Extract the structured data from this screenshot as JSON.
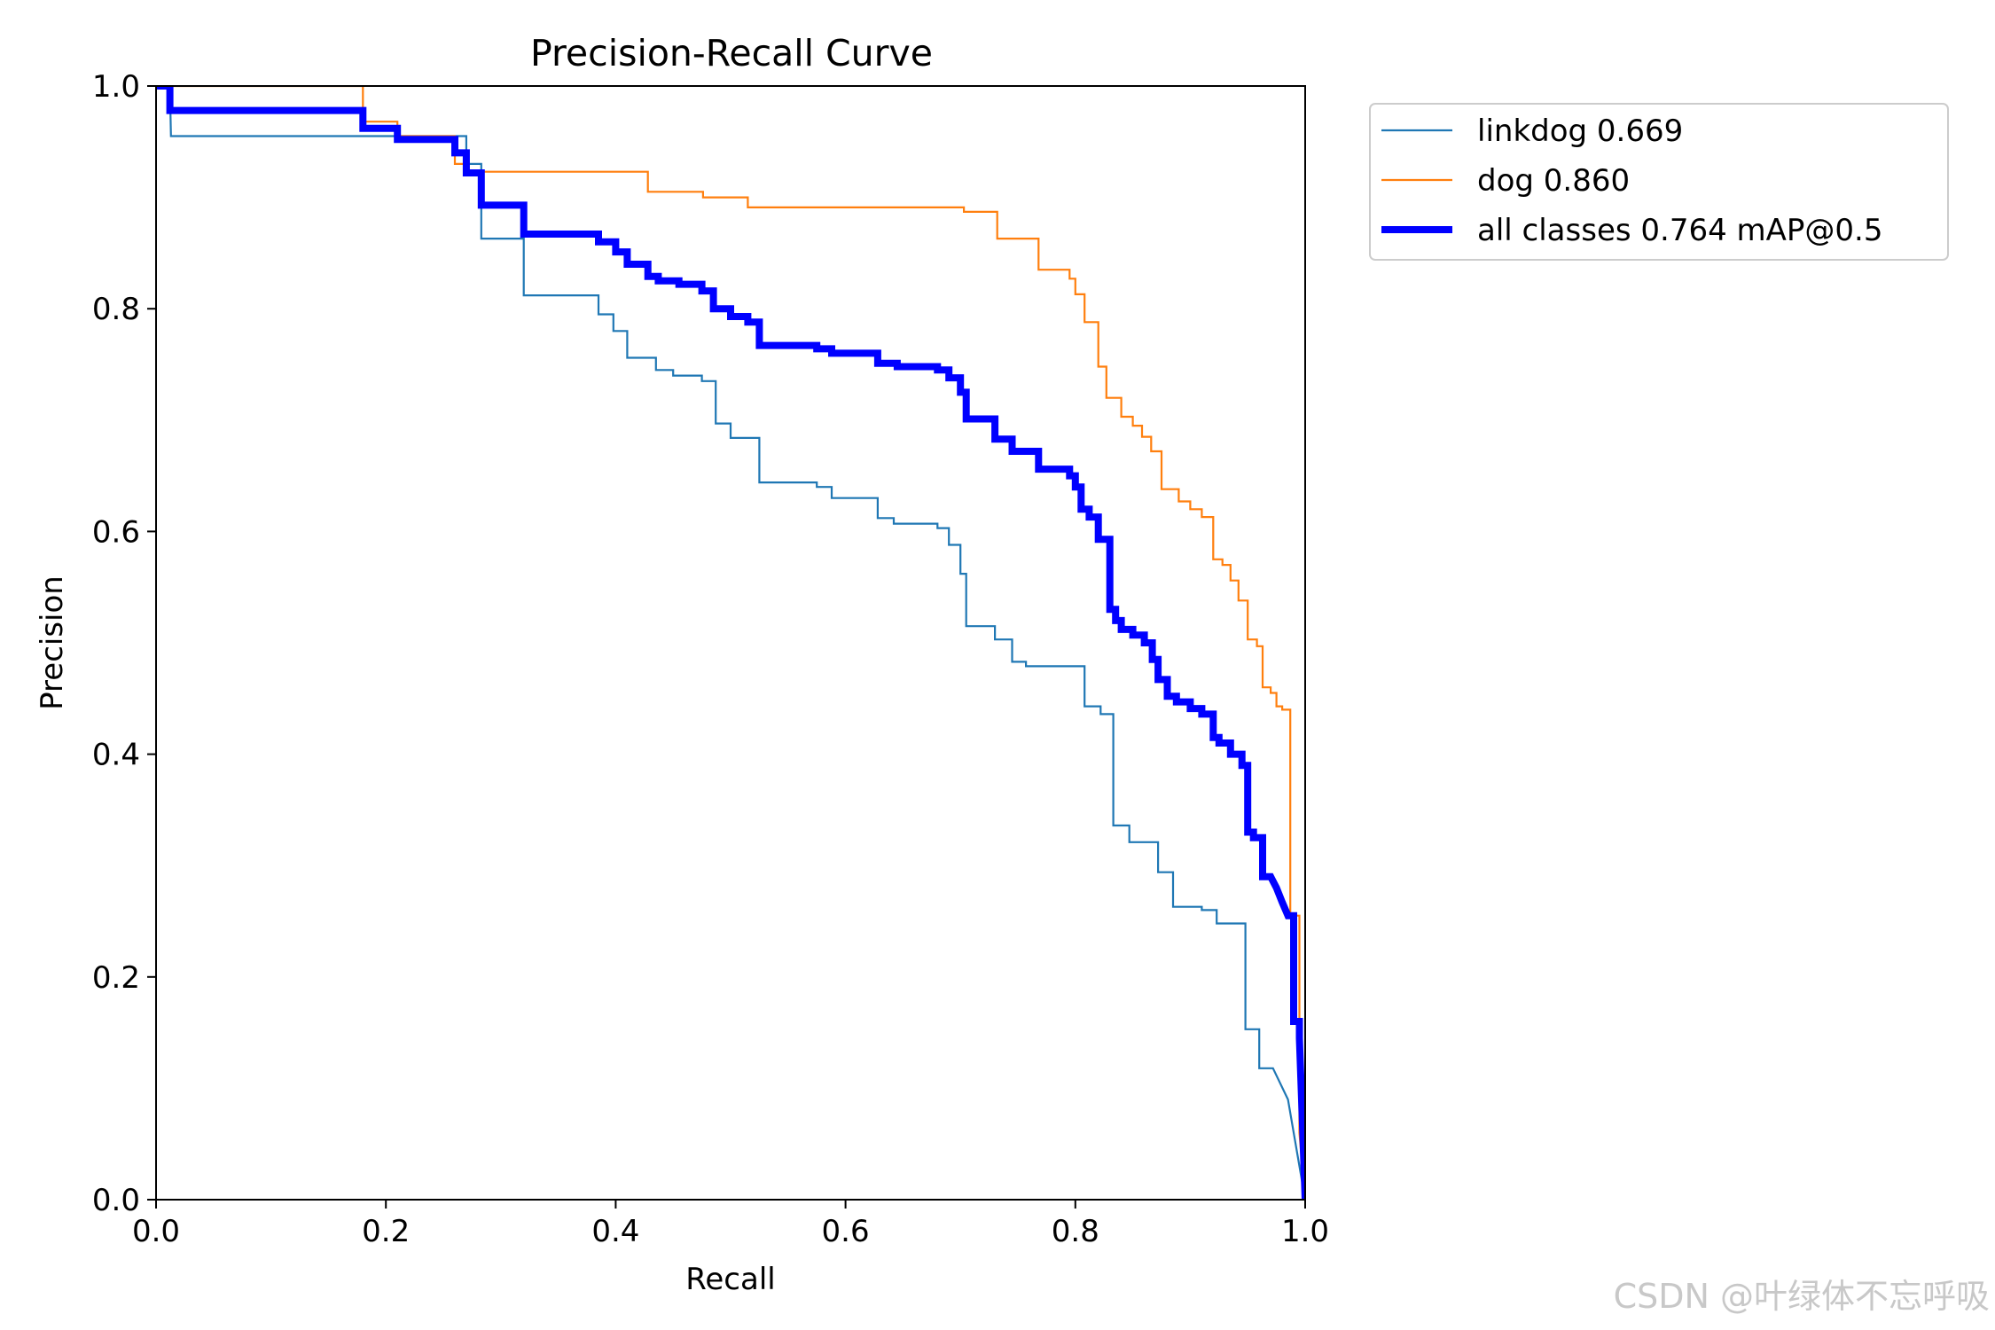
{
  "chart_data": {
    "type": "line",
    "title": "Precision-Recall Curve",
    "xlabel": "Recall",
    "ylabel": "Precision",
    "xlim": [
      0,
      1
    ],
    "ylim": [
      0,
      1
    ],
    "xticks": [
      "0.0",
      "0.2",
      "0.4",
      "0.6",
      "0.8",
      "1.0"
    ],
    "yticks": [
      "0.0",
      "0.2",
      "0.4",
      "0.6",
      "0.8",
      "1.0"
    ],
    "grid": false,
    "legend_position": "outside upper right",
    "series": [
      {
        "name": "linkdog 0.669",
        "color": "#1f77b4",
        "linewidth": "thin",
        "points": [
          [
            0,
            1.0
          ],
          [
            0.012,
            1.0
          ],
          [
            0.013,
            0.955
          ],
          [
            0.2,
            0.955
          ],
          [
            0.27,
            0.955
          ],
          [
            0.27,
            0.93
          ],
          [
            0.283,
            0.93
          ],
          [
            0.283,
            0.863
          ],
          [
            0.32,
            0.863
          ],
          [
            0.32,
            0.812
          ],
          [
            0.385,
            0.812
          ],
          [
            0.385,
            0.795
          ],
          [
            0.398,
            0.795
          ],
          [
            0.398,
            0.78
          ],
          [
            0.41,
            0.78
          ],
          [
            0.41,
            0.756
          ],
          [
            0.435,
            0.756
          ],
          [
            0.435,
            0.745
          ],
          [
            0.45,
            0.745
          ],
          [
            0.45,
            0.74
          ],
          [
            0.475,
            0.74
          ],
          [
            0.475,
            0.735
          ],
          [
            0.487,
            0.735
          ],
          [
            0.487,
            0.697
          ],
          [
            0.5,
            0.697
          ],
          [
            0.5,
            0.684
          ],
          [
            0.525,
            0.684
          ],
          [
            0.525,
            0.644
          ],
          [
            0.575,
            0.644
          ],
          [
            0.575,
            0.64
          ],
          [
            0.588,
            0.64
          ],
          [
            0.588,
            0.63
          ],
          [
            0.628,
            0.63
          ],
          [
            0.628,
            0.612
          ],
          [
            0.642,
            0.612
          ],
          [
            0.642,
            0.607
          ],
          [
            0.68,
            0.607
          ],
          [
            0.68,
            0.603
          ],
          [
            0.69,
            0.603
          ],
          [
            0.69,
            0.588
          ],
          [
            0.7,
            0.588
          ],
          [
            0.7,
            0.562
          ],
          [
            0.705,
            0.562
          ],
          [
            0.705,
            0.515
          ],
          [
            0.73,
            0.515
          ],
          [
            0.73,
            0.503
          ],
          [
            0.745,
            0.503
          ],
          [
            0.745,
            0.483
          ],
          [
            0.757,
            0.483
          ],
          [
            0.757,
            0.479
          ],
          [
            0.808,
            0.479
          ],
          [
            0.808,
            0.443
          ],
          [
            0.822,
            0.443
          ],
          [
            0.822,
            0.436
          ],
          [
            0.833,
            0.436
          ],
          [
            0.833,
            0.336
          ],
          [
            0.847,
            0.336
          ],
          [
            0.847,
            0.321
          ],
          [
            0.872,
            0.321
          ],
          [
            0.872,
            0.294
          ],
          [
            0.885,
            0.294
          ],
          [
            0.885,
            0.263
          ],
          [
            0.91,
            0.263
          ],
          [
            0.91,
            0.26
          ],
          [
            0.923,
            0.26
          ],
          [
            0.923,
            0.248
          ],
          [
            0.948,
            0.248
          ],
          [
            0.948,
            0.153
          ],
          [
            0.96,
            0.153
          ],
          [
            0.96,
            0.118
          ],
          [
            0.972,
            0.118
          ],
          [
            0.985,
            0.09
          ],
          [
            1.0,
            0.0
          ]
        ]
      },
      {
        "name": "dog 0.860",
        "color": "#ff7f0e",
        "linewidth": "thin",
        "points": [
          [
            0,
            1.0
          ],
          [
            0.18,
            1.0
          ],
          [
            0.18,
            0.968
          ],
          [
            0.21,
            0.968
          ],
          [
            0.21,
            0.955
          ],
          [
            0.26,
            0.955
          ],
          [
            0.26,
            0.93
          ],
          [
            0.272,
            0.93
          ],
          [
            0.272,
            0.923
          ],
          [
            0.428,
            0.923
          ],
          [
            0.428,
            0.905
          ],
          [
            0.476,
            0.905
          ],
          [
            0.476,
            0.9
          ],
          [
            0.515,
            0.9
          ],
          [
            0.515,
            0.891
          ],
          [
            0.703,
            0.891
          ],
          [
            0.703,
            0.887
          ],
          [
            0.732,
            0.887
          ],
          [
            0.732,
            0.863
          ],
          [
            0.768,
            0.863
          ],
          [
            0.768,
            0.835
          ],
          [
            0.795,
            0.835
          ],
          [
            0.795,
            0.827
          ],
          [
            0.8,
            0.827
          ],
          [
            0.8,
            0.813
          ],
          [
            0.808,
            0.813
          ],
          [
            0.808,
            0.788
          ],
          [
            0.82,
            0.788
          ],
          [
            0.82,
            0.748
          ],
          [
            0.827,
            0.748
          ],
          [
            0.827,
            0.72
          ],
          [
            0.84,
            0.72
          ],
          [
            0.84,
            0.703
          ],
          [
            0.85,
            0.703
          ],
          [
            0.85,
            0.695
          ],
          [
            0.858,
            0.695
          ],
          [
            0.858,
            0.685
          ],
          [
            0.866,
            0.685
          ],
          [
            0.866,
            0.672
          ],
          [
            0.875,
            0.672
          ],
          [
            0.875,
            0.638
          ],
          [
            0.89,
            0.638
          ],
          [
            0.89,
            0.627
          ],
          [
            0.9,
            0.627
          ],
          [
            0.9,
            0.62
          ],
          [
            0.91,
            0.62
          ],
          [
            0.91,
            0.613
          ],
          [
            0.92,
            0.613
          ],
          [
            0.92,
            0.575
          ],
          [
            0.928,
            0.575
          ],
          [
            0.928,
            0.57
          ],
          [
            0.935,
            0.57
          ],
          [
            0.935,
            0.556
          ],
          [
            0.942,
            0.556
          ],
          [
            0.942,
            0.538
          ],
          [
            0.95,
            0.538
          ],
          [
            0.95,
            0.503
          ],
          [
            0.958,
            0.503
          ],
          [
            0.958,
            0.497
          ],
          [
            0.963,
            0.497
          ],
          [
            0.963,
            0.46
          ],
          [
            0.97,
            0.46
          ],
          [
            0.97,
            0.455
          ],
          [
            0.975,
            0.455
          ],
          [
            0.975,
            0.443
          ],
          [
            0.98,
            0.443
          ],
          [
            0.98,
            0.44
          ],
          [
            0.987,
            0.44
          ],
          [
            0.987,
            0.255
          ],
          [
            0.995,
            0.255
          ],
          [
            0.995,
            0.06
          ],
          [
            1.0,
            0.0
          ]
        ]
      },
      {
        "name": "all classes 0.764 mAP@0.5",
        "color": "#0000ff",
        "linewidth": "thick",
        "points": [
          [
            0,
            1.0
          ],
          [
            0.012,
            1.0
          ],
          [
            0.012,
            0.978
          ],
          [
            0.18,
            0.978
          ],
          [
            0.18,
            0.962
          ],
          [
            0.21,
            0.962
          ],
          [
            0.21,
            0.952
          ],
          [
            0.26,
            0.952
          ],
          [
            0.26,
            0.94
          ],
          [
            0.27,
            0.94
          ],
          [
            0.27,
            0.922
          ],
          [
            0.283,
            0.922
          ],
          [
            0.283,
            0.893
          ],
          [
            0.32,
            0.893
          ],
          [
            0.32,
            0.867
          ],
          [
            0.385,
            0.867
          ],
          [
            0.385,
            0.86
          ],
          [
            0.4,
            0.86
          ],
          [
            0.4,
            0.851
          ],
          [
            0.41,
            0.851
          ],
          [
            0.41,
            0.84
          ],
          [
            0.428,
            0.84
          ],
          [
            0.428,
            0.829
          ],
          [
            0.437,
            0.829
          ],
          [
            0.437,
            0.825
          ],
          [
            0.455,
            0.825
          ],
          [
            0.455,
            0.822
          ],
          [
            0.475,
            0.822
          ],
          [
            0.475,
            0.816
          ],
          [
            0.485,
            0.816
          ],
          [
            0.485,
            0.8
          ],
          [
            0.5,
            0.8
          ],
          [
            0.5,
            0.793
          ],
          [
            0.515,
            0.793
          ],
          [
            0.515,
            0.788
          ],
          [
            0.525,
            0.788
          ],
          [
            0.525,
            0.767
          ],
          [
            0.575,
            0.767
          ],
          [
            0.575,
            0.764
          ],
          [
            0.588,
            0.764
          ],
          [
            0.588,
            0.76
          ],
          [
            0.628,
            0.76
          ],
          [
            0.628,
            0.751
          ],
          [
            0.645,
            0.751
          ],
          [
            0.645,
            0.748
          ],
          [
            0.68,
            0.748
          ],
          [
            0.68,
            0.745
          ],
          [
            0.69,
            0.745
          ],
          [
            0.69,
            0.738
          ],
          [
            0.7,
            0.738
          ],
          [
            0.7,
            0.725
          ],
          [
            0.705,
            0.725
          ],
          [
            0.705,
            0.701
          ],
          [
            0.73,
            0.701
          ],
          [
            0.73,
            0.683
          ],
          [
            0.745,
            0.683
          ],
          [
            0.745,
            0.672
          ],
          [
            0.768,
            0.672
          ],
          [
            0.768,
            0.656
          ],
          [
            0.795,
            0.656
          ],
          [
            0.795,
            0.65
          ],
          [
            0.8,
            0.65
          ],
          [
            0.8,
            0.64
          ],
          [
            0.805,
            0.64
          ],
          [
            0.805,
            0.62
          ],
          [
            0.812,
            0.62
          ],
          [
            0.812,
            0.613
          ],
          [
            0.82,
            0.613
          ],
          [
            0.82,
            0.593
          ],
          [
            0.83,
            0.593
          ],
          [
            0.83,
            0.53
          ],
          [
            0.835,
            0.53
          ],
          [
            0.835,
            0.52
          ],
          [
            0.84,
            0.52
          ],
          [
            0.84,
            0.512
          ],
          [
            0.85,
            0.512
          ],
          [
            0.85,
            0.507
          ],
          [
            0.86,
            0.507
          ],
          [
            0.86,
            0.5
          ],
          [
            0.867,
            0.5
          ],
          [
            0.867,
            0.485
          ],
          [
            0.872,
            0.485
          ],
          [
            0.872,
            0.467
          ],
          [
            0.88,
            0.467
          ],
          [
            0.88,
            0.452
          ],
          [
            0.888,
            0.452
          ],
          [
            0.888,
            0.447
          ],
          [
            0.9,
            0.447
          ],
          [
            0.9,
            0.441
          ],
          [
            0.91,
            0.441
          ],
          [
            0.91,
            0.436
          ],
          [
            0.92,
            0.436
          ],
          [
            0.92,
            0.415
          ],
          [
            0.925,
            0.415
          ],
          [
            0.925,
            0.41
          ],
          [
            0.935,
            0.41
          ],
          [
            0.935,
            0.4
          ],
          [
            0.945,
            0.4
          ],
          [
            0.945,
            0.39
          ],
          [
            0.95,
            0.39
          ],
          [
            0.95,
            0.33
          ],
          [
            0.955,
            0.33
          ],
          [
            0.955,
            0.325
          ],
          [
            0.963,
            0.325
          ],
          [
            0.963,
            0.29
          ],
          [
            0.97,
            0.29
          ],
          [
            0.975,
            0.28
          ],
          [
            0.98,
            0.267
          ],
          [
            0.985,
            0.255
          ],
          [
            0.99,
            0.255
          ],
          [
            0.99,
            0.16
          ],
          [
            0.995,
            0.16
          ],
          [
            0.995,
            0.145
          ],
          [
            1.0,
            0.0
          ]
        ]
      }
    ]
  },
  "watermark": "CSDN @叶绿体不忘呼吸"
}
